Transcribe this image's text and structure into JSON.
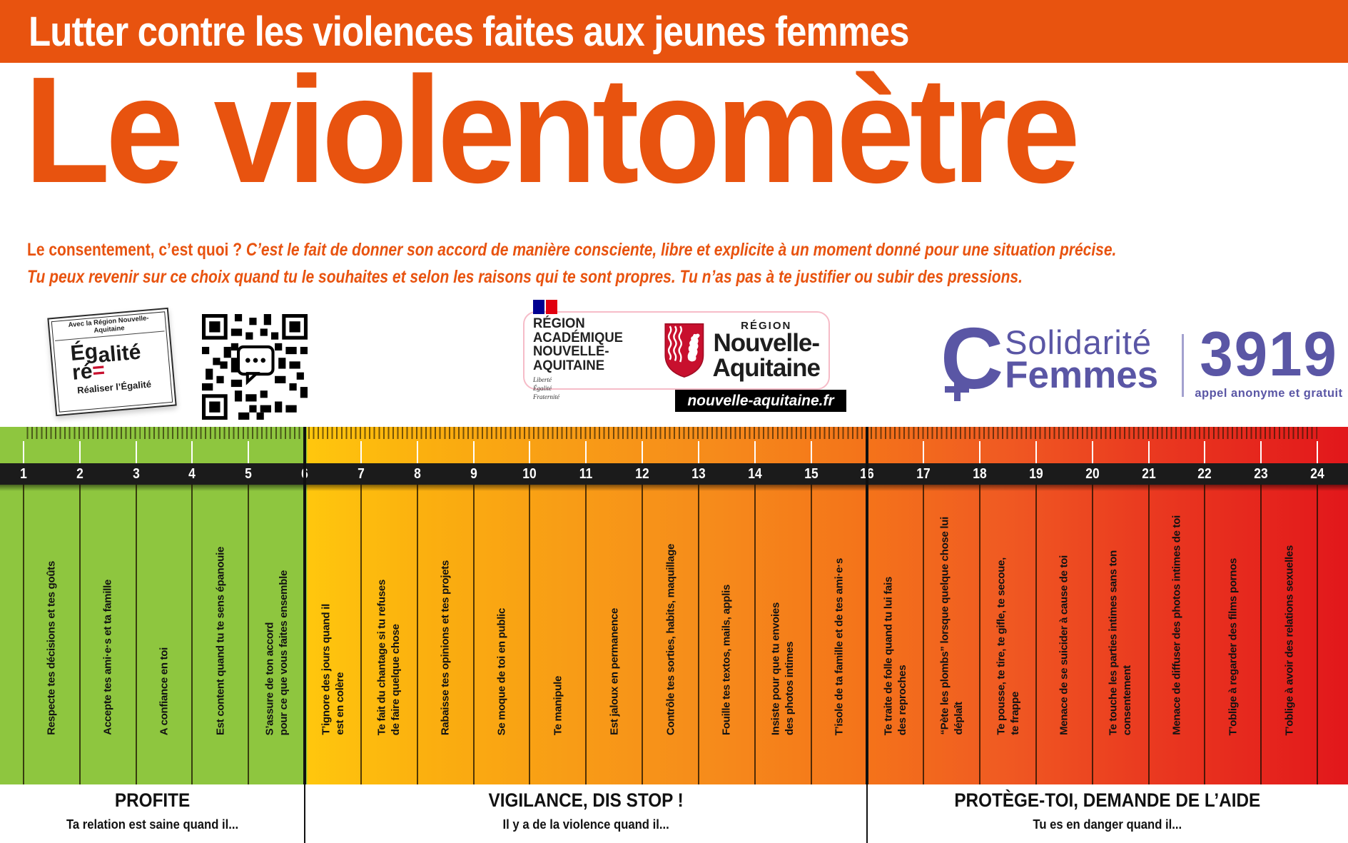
{
  "banner": {
    "text": "Lutter contre les violences faites aux jeunes femmes",
    "bg_color": "#E8530F"
  },
  "title": {
    "text": "Le violentomètre",
    "color": "#E8530F"
  },
  "intro": {
    "question": "Le consentement, c’est quoi ?",
    "answer": "C’est le fait de donner son accord de manière consciente, libre et explicite à un moment donné pour une situation précise.",
    "line2": "Tu peux revenir sur ce choix quand tu le souhaites et selon les raisons qui te sont propres. Tu n’as pas à te justifier ou subir des pressions."
  },
  "logos": {
    "egalite_badge": {
      "header": "Avec la Région Nouvelle-Aquitaine",
      "word_part1": "Ég",
      "word_part2": "alité",
      "word_part3": "ré",
      "equals": "=",
      "tagline": "Réaliser l’Égalité"
    },
    "region_academique": {
      "line1": "RÉGION ACADÉMIQUE",
      "line2": "NOUVELLE-AQUITAINE",
      "motto": "Liberté\nÉgalité\nFraternité"
    },
    "region": {
      "kicker": "RÉGION",
      "name1": "Nouvelle-",
      "name2": "Aquitaine",
      "url": "nouvelle-aquitaine.fr"
    },
    "solidarite": {
      "icon_letter": "C",
      "word1": "Solidarité",
      "word2": "Femmes",
      "color": "#5A56A5"
    },
    "hotline": {
      "number": "3919",
      "caption": "appel anonyme et gratuit"
    }
  },
  "scale": {
    "colors": {
      "green": "#8EC63F",
      "yellow": "#FFC70D",
      "orange": "#F4731A",
      "red": "#E2171B",
      "band": "#1B1B1B"
    },
    "items": [
      {
        "num": 1,
        "label": "Respecte tes décisions et tes goûts"
      },
      {
        "num": 2,
        "label": "Accepte tes ami·e·s et ta famille"
      },
      {
        "num": 3,
        "label": "A confiance en toi"
      },
      {
        "num": 4,
        "label": "Est content quand tu te sens épanouie"
      },
      {
        "num": 5,
        "label": "S’assure de ton accord\npour ce que vous faites ensemble"
      },
      {
        "num": 6,
        "label": "T’ignore des jours quand il\nest en colère"
      },
      {
        "num": 7,
        "label": "Te fait du chantage si tu refuses\nde faire quelque chose"
      },
      {
        "num": 8,
        "label": "Rabaisse tes opinions et tes projets"
      },
      {
        "num": 9,
        "label": "Se moque de toi en public"
      },
      {
        "num": 10,
        "label": "Te manipule"
      },
      {
        "num": 11,
        "label": "Est jaloux en permanence"
      },
      {
        "num": 12,
        "label": "Contrôle tes sorties, habits, maquillage"
      },
      {
        "num": 13,
        "label": "Fouille tes textos, mails, applis"
      },
      {
        "num": 14,
        "label": "Insiste pour que tu envoies\ndes photos intimes"
      },
      {
        "num": 15,
        "label": "T’isole de ta famille et de tes ami·e·s"
      },
      {
        "num": 16,
        "label": "Te traite de folle quand tu lui fais\ndes reproches"
      },
      {
        "num": 17,
        "label": "“Pète les plombs” lorsque quelque chose lui\ndéplaît"
      },
      {
        "num": 18,
        "label": "Te pousse, te tire, te gifle, te secoue,\nte frappe"
      },
      {
        "num": 19,
        "label": "Menace de se suicider à cause de toi"
      },
      {
        "num": 20,
        "label": "Te touche les parties intimes sans ton\nconsentement"
      },
      {
        "num": 21,
        "label": "Menace de diffuser des photos intimes de toi"
      },
      {
        "num": 22,
        "label": "T’oblige à regarder des films pornos"
      },
      {
        "num": 23,
        "label": "T’oblige à avoir des relations sexuelles"
      },
      {
        "num": 24,
        "label": ""
      }
    ],
    "sections": [
      {
        "label": "PROFITE",
        "subtitle": "Ta relation est saine quand il...",
        "from": 1,
        "to": 6
      },
      {
        "label": "VIGILANCE, DIS STOP !",
        "subtitle": "Il y a de la violence quand il...",
        "from": 6,
        "to": 16
      },
      {
        "label": "PROTÈGE-TOI, DEMANDE DE L’AIDE",
        "subtitle": "Tu es en danger quand il...",
        "from": 16,
        "to": 24
      }
    ]
  }
}
